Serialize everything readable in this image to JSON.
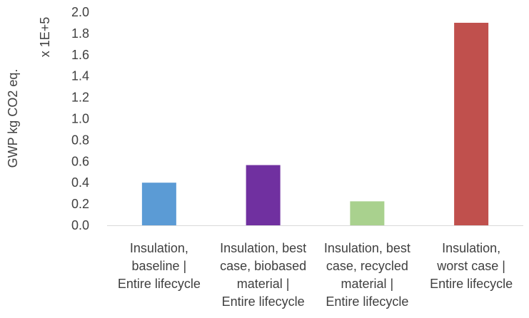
{
  "chart_data": {
    "type": "bar",
    "ylabel": "GWP kg CO2 eq.",
    "y_multiplier": "x 1E+5",
    "ylim": [
      0,
      2.0
    ],
    "yticks": [
      "0.0",
      "0.2",
      "0.4",
      "0.6",
      "0.8",
      "1.0",
      "1.2",
      "1.4",
      "1.6",
      "1.8",
      "2.0"
    ],
    "grid": false,
    "categories": [
      [
        "Insulation,",
        "baseline |",
        "Entire lifecycle"
      ],
      [
        "Insulation, best",
        "case, biobased",
        "material |",
        "Entire lifecycle"
      ],
      [
        "Insulation, best",
        "case, recycled",
        "material |",
        "Entire lifecycle"
      ],
      [
        "Insulation,",
        "worst case |",
        "Entire lifecycle"
      ]
    ],
    "values": [
      0.4,
      0.565,
      0.225,
      1.9
    ],
    "colors": [
      "#5B9BD5",
      "#7030A0",
      "#A9D18E",
      "#C0504D"
    ]
  }
}
